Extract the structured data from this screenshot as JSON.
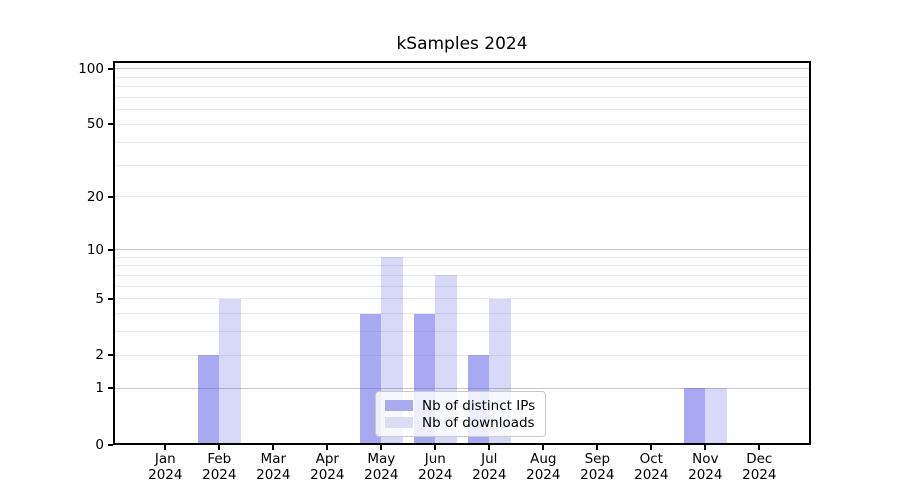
{
  "title": "kSamples 2024",
  "chart_data": {
    "type": "bar",
    "title": "kSamples 2024",
    "categories": [
      "Jan 2024",
      "Feb 2024",
      "Mar 2024",
      "Apr 2024",
      "May 2024",
      "Jun 2024",
      "Jul 2024",
      "Aug 2024",
      "Sep 2024",
      "Oct 2024",
      "Nov 2024",
      "Dec 2024"
    ],
    "series": [
      {
        "name": "Nb of distinct IPs",
        "color": "rgba(98,98,231,0.55)",
        "swatch_color": "#aaaaee",
        "values": [
          0,
          2,
          0,
          0,
          4,
          4,
          2,
          0,
          0,
          0,
          1,
          0
        ]
      },
      {
        "name": "Nb of downloads",
        "color": "rgba(98,98,231,0.25)",
        "swatch_color": "#dcdcf6",
        "values": [
          0,
          5,
          0,
          0,
          9,
          7,
          5,
          0,
          0,
          0,
          1,
          0
        ]
      }
    ],
    "xlabel": "",
    "ylabel": "",
    "y_axis": {
      "scale": "log10(value+1)",
      "ticks": [
        0,
        1,
        2,
        5,
        10,
        20,
        50,
        100
      ],
      "tick_labels": [
        "0",
        "1",
        "2",
        "5",
        "10",
        "20",
        "50",
        "100"
      ],
      "major_gridlines": [
        1,
        10,
        100
      ],
      "minor_gridlines": [
        2,
        3,
        4,
        5,
        6,
        7,
        8,
        9,
        20,
        30,
        40,
        50,
        60,
        70,
        80,
        90
      ],
      "range": [
        0,
        109
      ]
    },
    "grid": true,
    "legend_position": "lower center"
  },
  "legend": {
    "entries": [
      "Nb of distinct IPs",
      "Nb of downloads"
    ]
  },
  "colors": {
    "bar_distinct_ips": "#aaaaee",
    "bar_downloads": "#dcdcf6",
    "major_gridline": "#c6c6c6",
    "minor_gridline": "#e9e9e9",
    "axis": "#000000",
    "background": "#ffffff"
  }
}
